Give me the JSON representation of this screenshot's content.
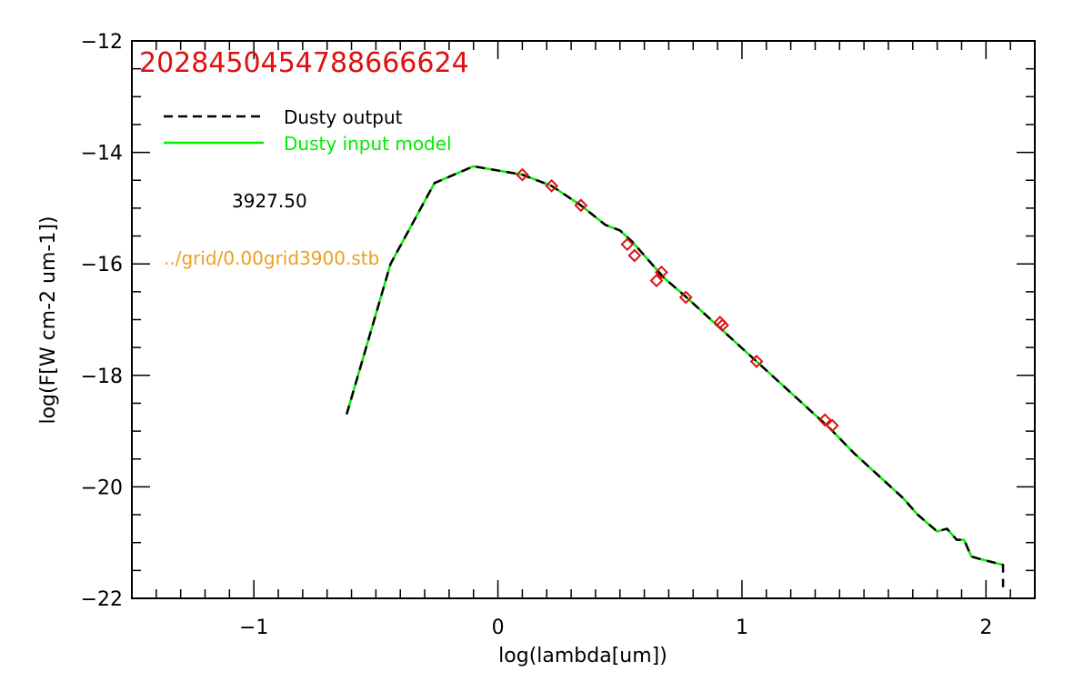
{
  "chart_data": {
    "type": "line",
    "title": "",
    "xlabel": "log(lambda[um])",
    "ylabel": "log(F[W cm-2 um-1])",
    "xlim": [
      -1.5,
      2.2
    ],
    "ylim": [
      -22,
      -12
    ],
    "xticks": [
      -1,
      0,
      1,
      2
    ],
    "xtick_labels": [
      "−1",
      "0",
      "1",
      "2"
    ],
    "yticks": [
      -22,
      -20,
      -18,
      -16,
      -14,
      -12
    ],
    "ytick_labels": [
      "−22",
      "−20",
      "−18",
      "−16",
      "−14",
      "−12"
    ],
    "grid": false,
    "legend_position": "top-left",
    "annotations": {
      "id_text": "2028450454788666624",
      "value_text": "3927.50",
      "file_text": "../grid/0.00grid3900.stb"
    },
    "series": [
      {
        "name": "Dusty output",
        "style": "dashed",
        "color": "#000000",
        "x": [
          -0.62,
          -0.44,
          -0.26,
          -0.1,
          0.1,
          0.22,
          0.34,
          0.44,
          0.5,
          0.55,
          0.6,
          0.68,
          0.76,
          0.86,
          0.96,
          1.06,
          1.16,
          1.26,
          1.36,
          1.46,
          1.56,
          1.66,
          1.72,
          1.8,
          1.84,
          1.88,
          1.91,
          1.94,
          1.98,
          2.07,
          2.07
        ],
        "y": [
          -18.7,
          -16.0,
          -14.55,
          -14.25,
          -14.4,
          -14.6,
          -14.95,
          -15.3,
          -15.4,
          -15.6,
          -15.85,
          -16.25,
          -16.55,
          -16.95,
          -17.35,
          -17.75,
          -18.15,
          -18.55,
          -18.95,
          -19.4,
          -19.8,
          -20.2,
          -20.5,
          -20.8,
          -20.75,
          -20.95,
          -20.95,
          -21.25,
          -21.3,
          -21.4,
          -21.8
        ]
      },
      {
        "name": "Dusty input model",
        "style": "solid",
        "color": "#00ee00",
        "x": [
          -0.62,
          -0.44,
          -0.26,
          -0.1,
          0.1,
          0.22,
          0.34,
          0.44,
          0.5,
          0.55,
          0.6,
          0.68,
          0.76,
          0.86,
          0.96,
          1.06,
          1.16,
          1.26,
          1.36,
          1.46,
          1.56,
          1.66,
          1.72,
          1.8,
          1.84,
          1.88,
          1.91,
          1.94,
          1.98,
          2.07
        ],
        "y": [
          -18.7,
          -16.0,
          -14.55,
          -14.25,
          -14.4,
          -14.6,
          -14.95,
          -15.3,
          -15.4,
          -15.6,
          -15.85,
          -16.25,
          -16.55,
          -16.95,
          -17.35,
          -17.75,
          -18.15,
          -18.55,
          -18.95,
          -19.4,
          -19.8,
          -20.2,
          -20.5,
          -20.8,
          -20.75,
          -20.95,
          -20.95,
          -21.25,
          -21.3,
          -21.4
        ]
      },
      {
        "name": "",
        "style": "markers",
        "marker": "diamond",
        "color": "#dd1111",
        "x": [
          0.1,
          0.22,
          0.34,
          0.53,
          0.56,
          0.65,
          0.67,
          0.77,
          0.91,
          0.92,
          1.06,
          1.34,
          1.37
        ],
        "y": [
          -14.4,
          -14.6,
          -14.95,
          -15.65,
          -15.85,
          -16.3,
          -16.15,
          -16.6,
          -17.05,
          -17.1,
          -17.75,
          -18.8,
          -18.9
        ]
      }
    ]
  }
}
